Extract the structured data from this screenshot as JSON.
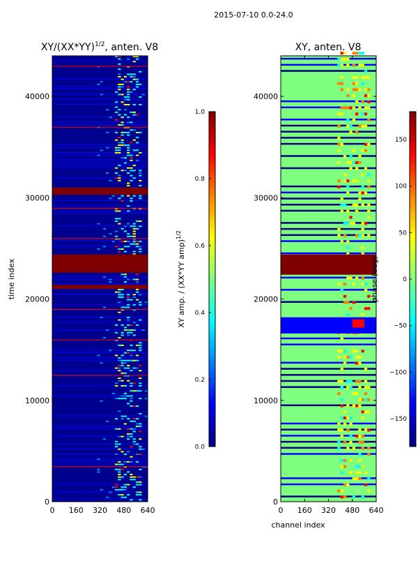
{
  "suptitle": "2015-07-10 0.0-24.0",
  "colormap": [
    "#00007f",
    "#0000ff",
    "#007fff",
    "#00ffff",
    "#7fff7f",
    "#ffff00",
    "#ff7f00",
    "#ff0000",
    "#7f0000"
  ],
  "chart_data": [
    {
      "type": "heatmap",
      "title": "XY/(XX*YY)",
      "title_superscript": "1/2",
      "title_suffix": ", anten. V8",
      "xlabel": "",
      "ylabel": "time index",
      "xlim": [
        0,
        640
      ],
      "ylim": [
        0,
        44000
      ],
      "xticks": [
        "0",
        "160",
        "320",
        "480",
        "640"
      ],
      "yticks": [
        "0",
        "10000",
        "20000",
        "30000",
        "40000"
      ],
      "colorbar": {
        "label": "XY amp. / (XX*YY amp)",
        "label_superscript": "1/2",
        "range": [
          0.0,
          1.0
        ],
        "ticks": [
          "0.0",
          "0.2",
          "0.4",
          "0.6",
          "0.8",
          "1.0"
        ]
      }
    },
    {
      "type": "heatmap",
      "title": "XY, anten. V8",
      "xlabel": "channel index",
      "ylabel": "",
      "xlim": [
        0,
        640
      ],
      "ylim": [
        0,
        44000
      ],
      "xticks": [
        "0",
        "160",
        "320",
        "480",
        "640"
      ],
      "yticks": [
        "0",
        "10000",
        "20000",
        "30000",
        "40000"
      ],
      "colorbar": {
        "label": "phase (deg)",
        "range": [
          -180,
          180
        ],
        "ticks": [
          "−150",
          "−100",
          "−50",
          "0",
          "50",
          "100",
          "150"
        ]
      }
    }
  ]
}
